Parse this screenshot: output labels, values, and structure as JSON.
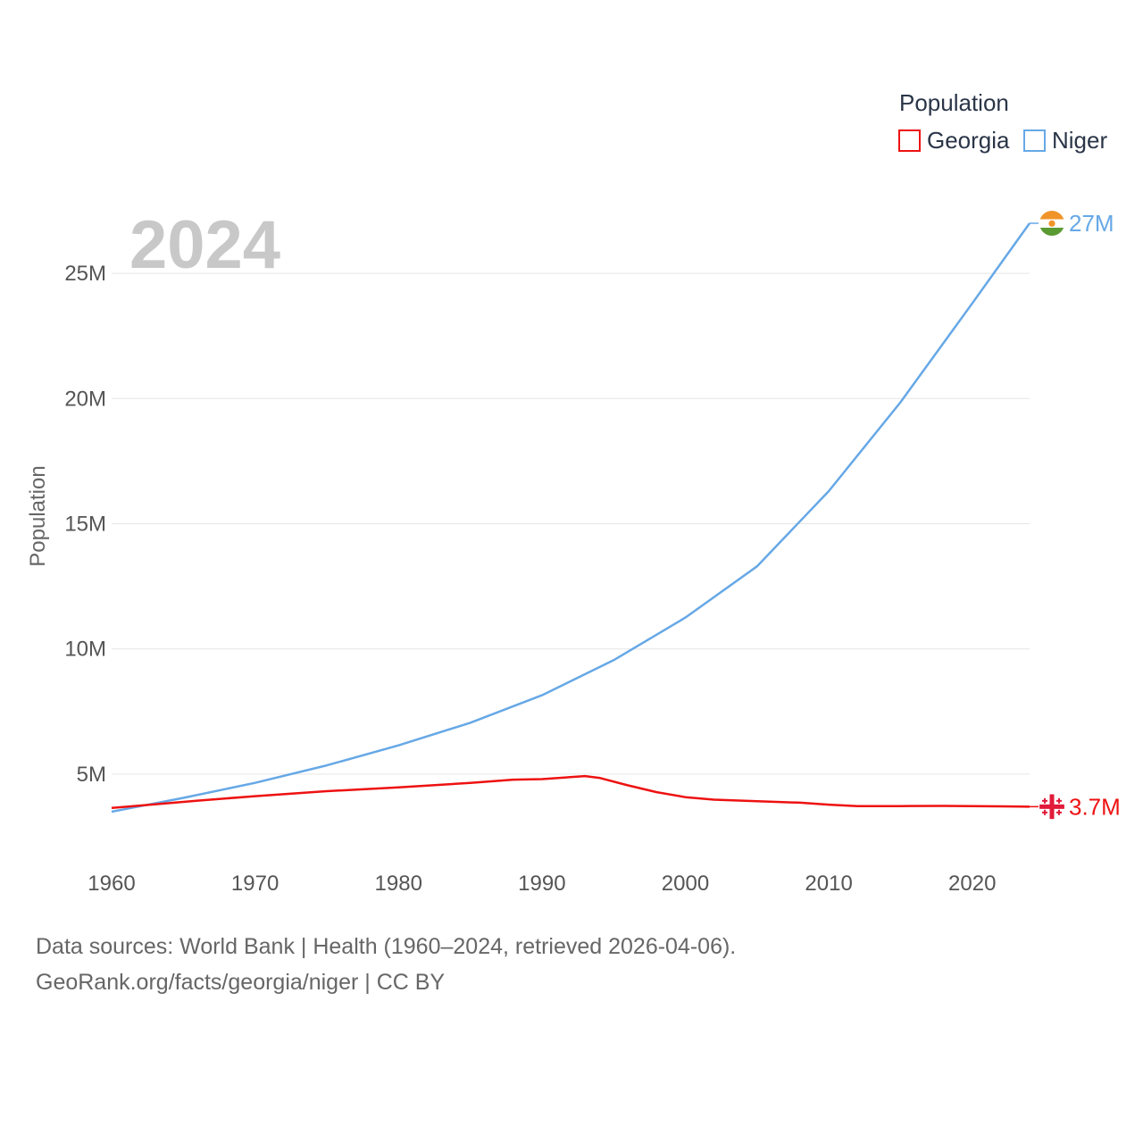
{
  "chart_data": {
    "type": "line",
    "title": "Population",
    "ylabel": "Population",
    "xlabel": "",
    "current_year_label": "2024",
    "x_ticks": [
      "1960",
      "1970",
      "1980",
      "1990",
      "2000",
      "2010",
      "2020"
    ],
    "y_ticks": [
      {
        "value": 5000000,
        "label": "5M"
      },
      {
        "value": 10000000,
        "label": "10M"
      },
      {
        "value": 15000000,
        "label": "15M"
      },
      {
        "value": 20000000,
        "label": "20M"
      },
      {
        "value": 25000000,
        "label": "25M"
      }
    ],
    "xlim": [
      1960,
      2024
    ],
    "ylim": [
      2500000,
      27500000
    ],
    "legend": {
      "title": "Population",
      "position": "top-right"
    },
    "series": [
      {
        "name": "Georgia",
        "color": "#ee1111",
        "end_label": "3.7M",
        "flag_icon": "georgia-flag-icon",
        "points": [
          [
            1960,
            3650000
          ],
          [
            1963,
            3790000
          ],
          [
            1966,
            3940000
          ],
          [
            1970,
            4120000
          ],
          [
            1975,
            4320000
          ],
          [
            1980,
            4470000
          ],
          [
            1985,
            4650000
          ],
          [
            1988,
            4780000
          ],
          [
            1990,
            4800000
          ],
          [
            1993,
            4920000
          ],
          [
            1994,
            4850000
          ],
          [
            1996,
            4550000
          ],
          [
            1998,
            4280000
          ],
          [
            2000,
            4080000
          ],
          [
            2002,
            3980000
          ],
          [
            2005,
            3920000
          ],
          [
            2008,
            3860000
          ],
          [
            2010,
            3780000
          ],
          [
            2012,
            3720000
          ],
          [
            2015,
            3725000
          ],
          [
            2018,
            3730000
          ],
          [
            2020,
            3722000
          ],
          [
            2022,
            3712000
          ],
          [
            2024,
            3700000
          ]
        ]
      },
      {
        "name": "Niger",
        "color": "#66a8e6",
        "end_label": "27M",
        "flag_icon": "niger-flag-icon",
        "points": [
          [
            1960,
            3500000
          ],
          [
            1965,
            4050000
          ],
          [
            1970,
            4650000
          ],
          [
            1975,
            5350000
          ],
          [
            1980,
            6150000
          ],
          [
            1985,
            7050000
          ],
          [
            1990,
            8150000
          ],
          [
            1995,
            9550000
          ],
          [
            2000,
            11250000
          ],
          [
            2005,
            13300000
          ],
          [
            2010,
            16300000
          ],
          [
            2015,
            19850000
          ],
          [
            2020,
            23800000
          ],
          [
            2024,
            27000000
          ]
        ]
      }
    ]
  },
  "footer": {
    "line1": "Data sources: World Bank | Health (1960–2024, retrieved 2026-04-06).",
    "line2": "GeoRank.org/facts/georgia/niger | CC BY"
  }
}
